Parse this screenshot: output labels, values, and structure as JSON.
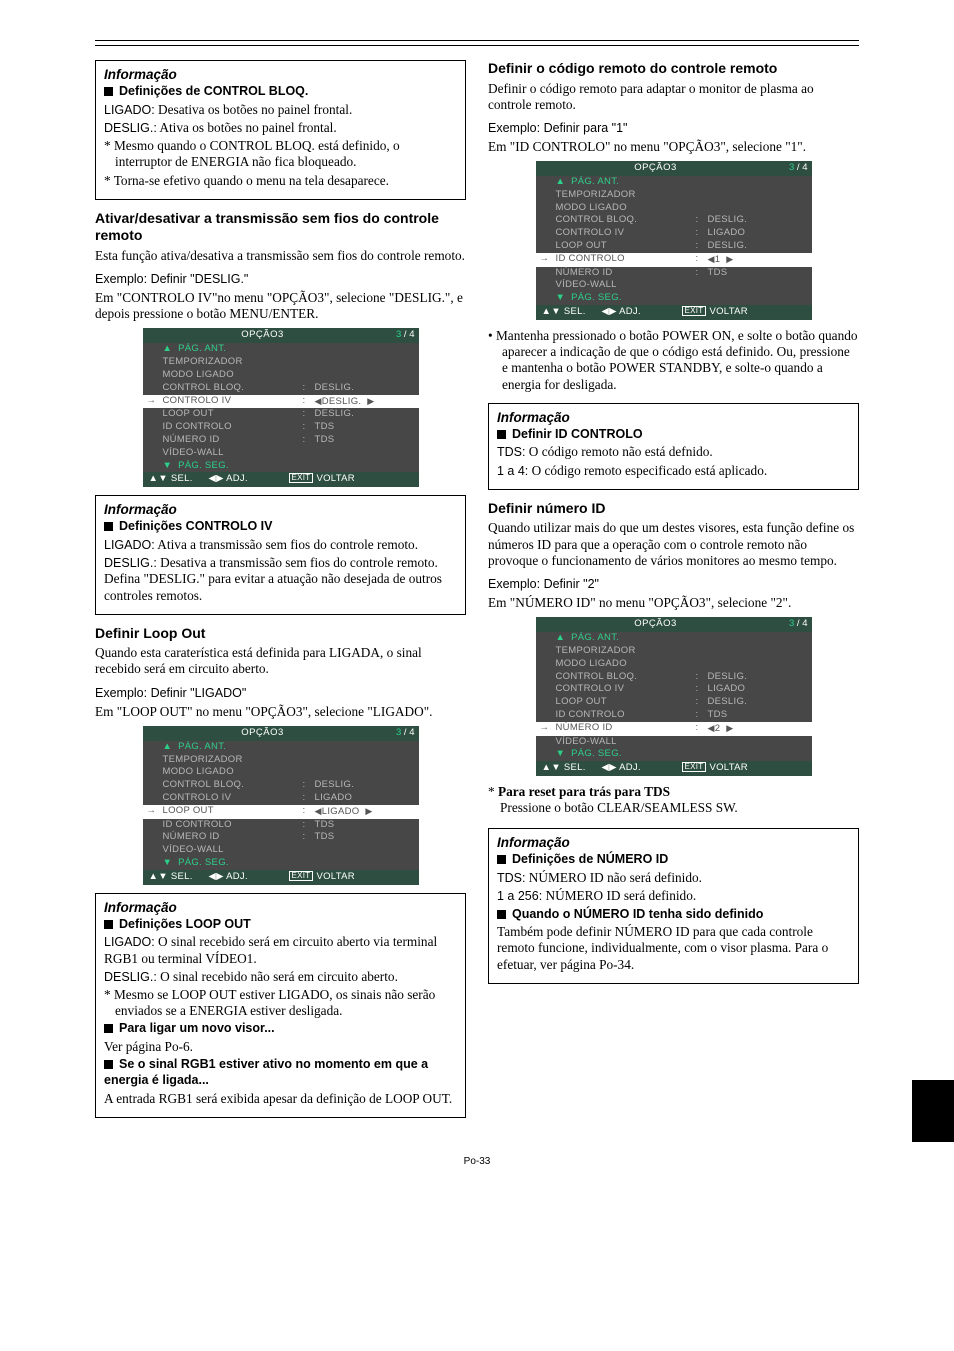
{
  "left": {
    "infoTitle": "Informação",
    "sec1": {
      "heading": "Definições de CONTROL BLOQ.",
      "line1a": "LIGADO:",
      "line1b": " Desativa os botões no painel frontal.",
      "line2a": "DESLIG.:",
      "line2b": " Ativa os botões no painel frontal.",
      "star1": "* Mesmo quando o CONTROL BLOQ. está definido, o interruptor de ENERGIA não fica bloqueado.",
      "star2": "* Torna-se efetivo quando o menu na tela desaparece."
    },
    "sec2": {
      "heading": "Ativar/desativar a transmissão sem fios do controle remoto",
      "para1": "Esta função ativa/desativa a transmissão sem fios do controle remoto.",
      "exLabel": "Exemplo: Definir \"DESLIG.\"",
      "para2": "Em \"CONTROLO IV\"no menu \"OPÇÃO3\", selecione \"DESLIG.\", e depois pressione o botão MENU/ENTER."
    },
    "menu1": {
      "title": "OPÇÃO3",
      "page": "3 / 4",
      "rows": [
        {
          "label": "PÁG. ANT.",
          "value": "",
          "green": true,
          "upArrow": true
        },
        {
          "label": "TEMPORIZADOR",
          "value": ""
        },
        {
          "label": "MODO LIGADO",
          "value": ""
        },
        {
          "label": "CONTROL BLOQ.",
          "value": "DESLIG.",
          "colon": true
        },
        {
          "label": "CONTROLO IV",
          "value": "DESLIG.",
          "colon": true,
          "selected": true,
          "lr": true
        },
        {
          "label": "LOOP OUT",
          "value": "DESLIG.",
          "colon": true
        },
        {
          "label": "ID CONTROLO",
          "value": "TDS",
          "colon": true
        },
        {
          "label": "NÚMERO ID",
          "value": "TDS",
          "colon": true
        },
        {
          "label": "VÍDEO-WALL",
          "value": ""
        },
        {
          "label": "PÁG. SEG.",
          "value": "",
          "green": true,
          "downArrow": true
        }
      ],
      "footer": {
        "sel": "SEL.",
        "adj": "ADJ.",
        "ret": "VOLTAR"
      }
    },
    "sec3": {
      "heading": "Definições CONTROLO IV",
      "line1a": "LIGADO:",
      "line1b": " Ativa a transmissão sem fios do controle remoto.",
      "line2a": "DESLIG.:",
      "line2b": " Desativa a transmissão sem fios do controle remoto. Defina \"DESLIG.\" para evitar a atuação não desejada de outros controles remotos."
    },
    "sec4": {
      "heading": "Definir Loop Out",
      "para1": "Quando esta caraterística está definida para LIGADA, o sinal recebido será em circuito aberto.",
      "exLabel": "Exemplo: Definir \"LIGADO\"",
      "para2": "Em \"LOOP OUT\" no menu \"OPÇÃO3\", selecione \"LIGADO\"."
    },
    "menu2": {
      "title": "OPÇÃO3",
      "page": "3 / 4",
      "rows": [
        {
          "label": "PÁG. ANT.",
          "value": "",
          "green": true,
          "upArrow": true
        },
        {
          "label": "TEMPORIZADOR",
          "value": ""
        },
        {
          "label": "MODO LIGADO",
          "value": ""
        },
        {
          "label": "CONTROL BLOQ.",
          "value": "DESLIG.",
          "colon": true
        },
        {
          "label": "CONTROLO IV",
          "value": "LIGADO",
          "colon": true
        },
        {
          "label": "LOOP OUT",
          "value": "LIGADO",
          "colon": true,
          "selected": true,
          "lr": true
        },
        {
          "label": "ID CONTROLO",
          "value": "TDS",
          "colon": true
        },
        {
          "label": "NÚMERO ID",
          "value": "TDS",
          "colon": true
        },
        {
          "label": "VÍDEO-WALL",
          "value": ""
        },
        {
          "label": "PÁG. SEG.",
          "value": "",
          "green": true,
          "downArrow": true
        }
      ],
      "footer": {
        "sel": "SEL.",
        "adj": "ADJ.",
        "ret": "VOLTAR"
      }
    },
    "sec5": {
      "heading": "Definições LOOP OUT",
      "line1a": "LIGADO:",
      "line1b": " O sinal recebido será em circuito aberto via terminal RGB1 ou terminal VÍDEO1.",
      "line2a": "DESLIG.:",
      "line2b": " O sinal recebido não será em circuito aberto.",
      "star1": "* Mesmo se LOOP OUT estiver LIGADO, os sinais não serão enviados se a ENERGIA estiver desligada.",
      "sub1": "Para ligar um novo visor...",
      "sub1txt": "Ver página Po-6.",
      "sub2": "Se o sinal RGB1 estiver ativo no momento em que a energia é ligada...",
      "sub2txt": "A entrada RGB1 será exibida apesar da definição de LOOP OUT."
    }
  },
  "right": {
    "sec1": {
      "heading": "Definir o código remoto do controle remoto",
      "para1": "Definir o código remoto para adaptar o monitor de plasma ao controle remoto.",
      "exLabel": "Exemplo: Definir para \"1\"",
      "para2": "Em \"ID CONTROLO\" no menu \"OPÇÃO3\", selecione \"1\"."
    },
    "menu3": {
      "title": "OPÇÃO3",
      "page": "3 / 4",
      "rows": [
        {
          "label": "PÁG. ANT.",
          "value": "",
          "green": true,
          "upArrow": true
        },
        {
          "label": "TEMPORIZADOR",
          "value": ""
        },
        {
          "label": "MODO LIGADO",
          "value": ""
        },
        {
          "label": "CONTROL BLOQ.",
          "value": "DESLIG.",
          "colon": true
        },
        {
          "label": "CONTROLO IV",
          "value": "LIGADO",
          "colon": true
        },
        {
          "label": "LOOP OUT",
          "value": "DESLIG.",
          "colon": true
        },
        {
          "label": "ID CONTROLO",
          "value": "1",
          "colon": true,
          "selected": true,
          "lr": true
        },
        {
          "label": "NÚMERO ID",
          "value": "TDS",
          "colon": true
        },
        {
          "label": "VÍDEO-WALL",
          "value": ""
        },
        {
          "label": "PÁG. SEG.",
          "value": "",
          "green": true,
          "downArrow": true
        }
      ],
      "footer": {
        "sel": "SEL.",
        "adj": "ADJ.",
        "ret": "VOLTAR"
      }
    },
    "bullet": "•  Mantenha pressionado o botão POWER ON, e solte o botão quando aparecer a indicação de que o código está definido. Ou, pressione e mantenha o botão POWER STANDBY, e solte-o quando a energia for desligada.",
    "sec2": {
      "heading": "Definir ID CONTROLO",
      "line1a": "TDS:",
      "line1b": " O código remoto não está defnido.",
      "line2a": "1 a 4:",
      "line2b": " O código remoto especificado está aplicado."
    },
    "sec3": {
      "heading": "Definir número ID",
      "para1": "Quando utilizar mais do que um destes visores, esta função define os números ID para que a operação com o controle remoto não provoque o funcionamento de vários monitores ao mesmo tempo.",
      "exLabel": "Exemplo: Definir \"2\"",
      "para2": "Em \"NÚMERO ID\" no menu \"OPÇÃO3\", selecione \"2\"."
    },
    "menu4": {
      "title": "OPÇÃO3",
      "page": "3 / 4",
      "rows": [
        {
          "label": "PÁG. ANT.",
          "value": "",
          "green": true,
          "upArrow": true
        },
        {
          "label": "TEMPORIZADOR",
          "value": ""
        },
        {
          "label": "MODO LIGADO",
          "value": ""
        },
        {
          "label": "CONTROL BLOQ.",
          "value": "DESLIG.",
          "colon": true
        },
        {
          "label": "CONTROLO IV",
          "value": "LIGADO",
          "colon": true
        },
        {
          "label": "LOOP OUT",
          "value": "DESLIG.",
          "colon": true
        },
        {
          "label": "ID CONTROLO",
          "value": "TDS",
          "colon": true
        },
        {
          "label": "NÚMERO ID",
          "value": "2",
          "colon": true,
          "selected": true,
          "lr": true
        },
        {
          "label": "VÍDEO-WALL",
          "value": ""
        },
        {
          "label": "PÁG. SEG.",
          "value": "",
          "green": true,
          "downArrow": true
        }
      ],
      "footer": {
        "sel": "SEL.",
        "adj": "ADJ.",
        "ret": "VOLTAR"
      }
    },
    "star1a": "* ",
    "star1b": "Para reset para trás para TDS",
    "star1c": "Pressione o botão CLEAR/SEAMLESS SW.",
    "sec4": {
      "heading": "Definições de NÚMERO ID",
      "line1a": "TDS:",
      "line1b": " NÚMERO ID não será definido.",
      "line2a": "1 a 256:",
      "line2b": " NÚMERO ID será definido.",
      "sub1": "Quando o NÚMERO ID tenha sido definido",
      "sub1txt": "Também pode definir NÚMERO ID para que cada controle remoto funcione, individualmente, com o visor plasma. Para o efetuar, ver página Po-34."
    }
  },
  "pagenum": "Po-33",
  "infoTitle": "Informação"
}
